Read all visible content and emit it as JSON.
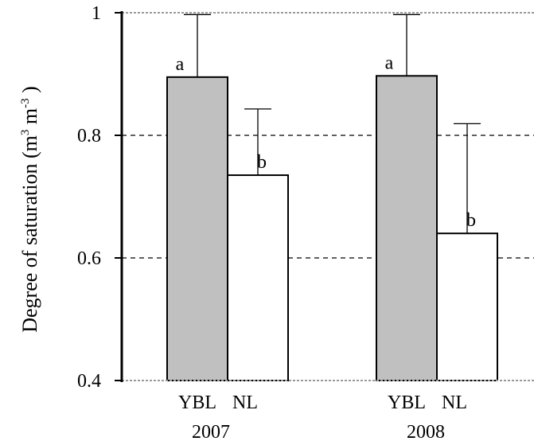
{
  "chart_data": {
    "type": "bar",
    "ylabel": "Degree of saturation (m³ m⁻³ )",
    "ylabel_parts": {
      "main": "Degree of saturation (m",
      "e1": "3",
      "mid": " m",
      "e2": "-3",
      "end": " )"
    },
    "ylim": [
      0.4,
      1.0
    ],
    "yticks": [
      0.4,
      0.6,
      0.8,
      1.0
    ],
    "ytick_labels": [
      "0.4",
      "0.6",
      "0.8",
      "1"
    ],
    "grid": "horizontal dashed at 0.6, 0.8, 1.0",
    "groups": [
      {
        "label": "2007",
        "bars": [
          {
            "category": "YBL",
            "value": 0.895,
            "error_upper": 0.997,
            "letter": "a",
            "color": "#c0c0c0"
          },
          {
            "category": "NL",
            "value": 0.735,
            "error_upper": 0.843,
            "letter": "b",
            "color": "#ffffff"
          }
        ]
      },
      {
        "label": "2008",
        "bars": [
          {
            "category": "YBL",
            "value": 0.897,
            "error_upper": 0.997,
            "letter": "a",
            "color": "#c0c0c0"
          },
          {
            "category": "NL",
            "value": 0.64,
            "error_upper": 0.819,
            "letter": "b",
            "color": "#ffffff"
          }
        ]
      }
    ]
  }
}
